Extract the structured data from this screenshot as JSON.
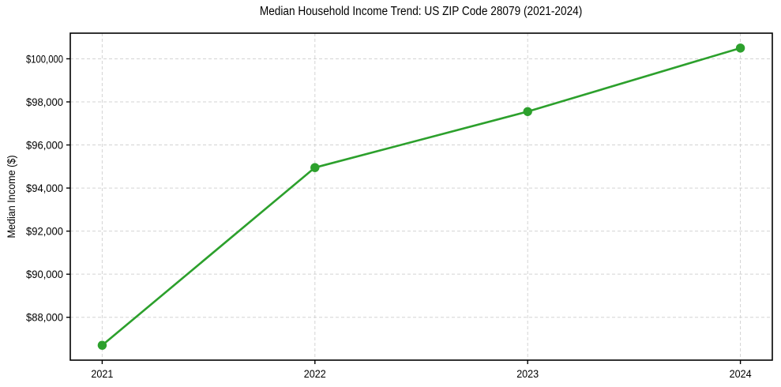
{
  "chart_data": {
    "type": "line",
    "title": "Median Household Income Trend: US ZIP Code 28079 (2021-2024)",
    "ylabel": "Median Income ($)",
    "x": [
      2021,
      2022,
      2023,
      2024
    ],
    "xtick_labels": [
      "2021",
      "2022",
      "2023",
      "2024"
    ],
    "values": [
      86700,
      94950,
      97550,
      100500
    ],
    "yticks": [
      88000,
      90000,
      92000,
      94000,
      96000,
      98000,
      100000
    ],
    "ytick_labels": [
      "$88,000",
      "$90,000",
      "$92,000",
      "$94,000",
      "$96,000",
      "$98,000",
      "$100,000"
    ],
    "xlim": [
      2020.85,
      2024.15
    ],
    "ylim": [
      86010,
      101190
    ],
    "grid": true,
    "grid_style": "dashed",
    "legend": false,
    "marker": "circle",
    "colors": {
      "line": "#2ca02c",
      "marker": "#2ca02c",
      "grid": "#d3d3d3",
      "axis": "#000000",
      "text": "#000000",
      "background": "#ffffff"
    }
  }
}
